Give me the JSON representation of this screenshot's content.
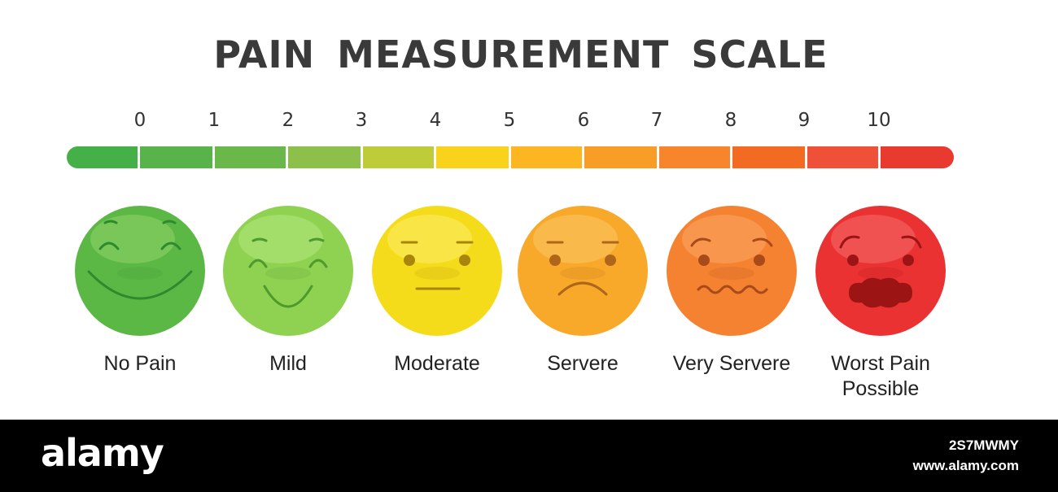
{
  "title": "PAIN MEASUREMENT SCALE",
  "scale": {
    "ticks": [
      "0",
      "1",
      "2",
      "3",
      "4",
      "5",
      "6",
      "7",
      "8",
      "9",
      "10"
    ],
    "segment_colors": [
      "#45b048",
      "#58b44a",
      "#6ab84a",
      "#8cc04a",
      "#bfcc3a",
      "#f9d21c",
      "#fbb621",
      "#f89d26",
      "#f6852b",
      "#f36a22",
      "#ee5138",
      "#e83a2e"
    ]
  },
  "faces": [
    {
      "label": "No Pain",
      "color": "#5cb845",
      "highlight": "#8fd468",
      "line": "#2e8a2d",
      "expression": "grin"
    },
    {
      "label": "Mild",
      "color": "#8fd150",
      "highlight": "#b5e77f",
      "line": "#4f9a2c",
      "expression": "smile"
    },
    {
      "label": "Moderate",
      "color": "#f5dc1a",
      "highlight": "#fbee6b",
      "line": "#a8860c",
      "expression": "neutral"
    },
    {
      "label": "Servere",
      "color": "#f8a92a",
      "highlight": "#fcc866",
      "line": "#b0661a",
      "expression": "frown"
    },
    {
      "label": "Very Servere",
      "color": "#f58231",
      "highlight": "#f9a866",
      "line": "#a94a1a",
      "expression": "wavy"
    },
    {
      "label": "Worst Pain Possible",
      "color": "#eb3232",
      "highlight": "#f46b6b",
      "line": "#9c1414",
      "expression": "grimace"
    }
  ],
  "footer": {
    "brand": "alamy",
    "image_id": "2S7MWMY",
    "site": "www.alamy.com"
  }
}
